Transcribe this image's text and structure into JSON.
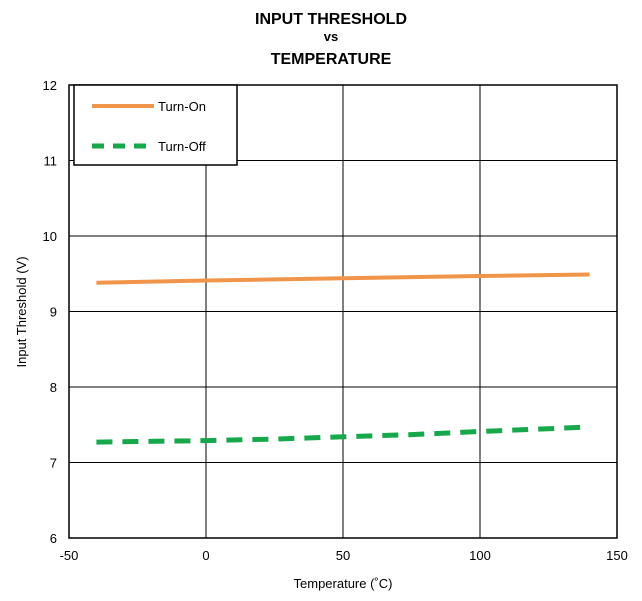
{
  "chart_data": {
    "type": "line",
    "title": [
      "INPUT THRESHOLD",
      "vs",
      "TEMPERATURE"
    ],
    "xlabel": "Temperature (˚C)",
    "ylabel": "Input Threshold (V)",
    "xlim": [
      -50,
      150
    ],
    "ylim": [
      6,
      12
    ],
    "xticks": [
      -50,
      0,
      50,
      100,
      150
    ],
    "yticks": [
      6,
      7,
      8,
      9,
      10,
      11,
      12
    ],
    "grid": true,
    "legend_position": "top-left",
    "series": [
      {
        "name": "Turn-On",
        "color": "#f0954a",
        "style": "solid",
        "x": [
          -40,
          0,
          50,
          100,
          140
        ],
        "y": [
          9.38,
          9.41,
          9.44,
          9.47,
          9.49
        ]
      },
      {
        "name": "Turn-Off",
        "color": "#17a84b",
        "style": "dashed",
        "x": [
          -40,
          0,
          25,
          50,
          75,
          100,
          140
        ],
        "y": [
          7.27,
          7.29,
          7.31,
          7.34,
          7.37,
          7.41,
          7.47
        ]
      }
    ]
  }
}
